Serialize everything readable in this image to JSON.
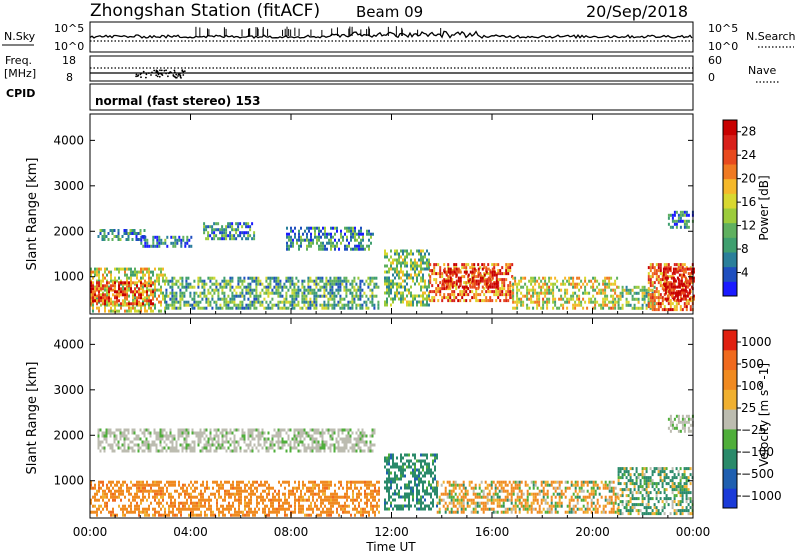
{
  "header": {
    "station": "Zhongshan Station (fitACF)",
    "beam": "Beam 09",
    "date": "20/Sep/2018"
  },
  "summary_panels": {
    "nsky_label": "N.Sky",
    "nsky_ticks": [
      "10^5",
      "10^0"
    ],
    "nsearch_label": "N.Search",
    "nsearch_ticks": [
      "10^5",
      "10^0"
    ],
    "freq_label": "Freq.",
    "freq_unit": "[MHz]",
    "freq_ticks": [
      "18",
      "8"
    ],
    "nave_label": "Nave",
    "nave_ticks": [
      "60",
      "0"
    ],
    "cpid_label": "CPID",
    "cpid_text": "normal (fast stereo) 153"
  },
  "chart_data": [
    {
      "type": "heatmap",
      "name": "power",
      "ylabel": "Slant Range [km]",
      "ylim": [
        180,
        4580
      ],
      "yticks": [
        1000,
        2000,
        3000,
        4000
      ],
      "xlabel": "",
      "xlim_hours": [
        0,
        24
      ],
      "colorbar": {
        "label": "Power [dB]",
        "ticks": [
          "4",
          "8",
          "12",
          "16",
          "20",
          "24",
          "28"
        ],
        "range": [
          0,
          30
        ],
        "colors": [
          "#1a1aff",
          "#1f4fbf",
          "#2a7f9a",
          "#3f9f6f",
          "#5fb05f",
          "#9ccc3c",
          "#d8d830",
          "#f5b82a",
          "#f07a22",
          "#e84a1e",
          "#d8201a",
          "#c80000"
        ]
      },
      "regions": [
        {
          "t": [
            0.0,
            3.0
          ],
          "r": [
            220,
            1200
          ],
          "v": 15,
          "note": "mixed"
        },
        {
          "t": [
            0.0,
            2.5
          ],
          "r": [
            400,
            900
          ],
          "v": 24
        },
        {
          "t": [
            3.0,
            11.5
          ],
          "r": [
            300,
            1000
          ],
          "v": 10
        },
        {
          "t": [
            0.3,
            2.2
          ],
          "r": [
            1850,
            2050
          ],
          "v": 7
        },
        {
          "t": [
            2.0,
            4.0
          ],
          "r": [
            1700,
            1900
          ],
          "v": 6
        },
        {
          "t": [
            4.5,
            6.5
          ],
          "r": [
            1850,
            2200
          ],
          "v": 8
        },
        {
          "t": [
            7.8,
            11.3
          ],
          "r": [
            1600,
            2100
          ],
          "v": 8
        },
        {
          "t": [
            11.7,
            13.5
          ],
          "r": [
            400,
            1600
          ],
          "v": 12
        },
        {
          "t": [
            13.5,
            16.8
          ],
          "r": [
            500,
            1300
          ],
          "v": 22
        },
        {
          "t": [
            14.0,
            16.2
          ],
          "r": [
            800,
            1200
          ],
          "v": 28
        },
        {
          "t": [
            16.8,
            21.0
          ],
          "r": [
            300,
            1000
          ],
          "v": 16
        },
        {
          "t": [
            21.0,
            22.5
          ],
          "r": [
            300,
            800
          ],
          "v": 12
        },
        {
          "t": [
            22.2,
            24.0
          ],
          "r": [
            300,
            1300
          ],
          "v": 22
        },
        {
          "t": [
            22.8,
            24.0
          ],
          "r": [
            500,
            1200
          ],
          "v": 28
        },
        {
          "t": [
            23.0,
            24.0
          ],
          "r": [
            2100,
            2450
          ],
          "v": 6
        }
      ]
    },
    {
      "type": "heatmap",
      "name": "velocity",
      "ylabel": "Slant Range [km]",
      "ylim": [
        180,
        4580
      ],
      "yticks": [
        1000,
        2000,
        3000,
        4000
      ],
      "xlabel": "Time UT",
      "xticks": [
        "00:00",
        "04:00",
        "08:00",
        "12:00",
        "16:00",
        "20:00",
        "00:00"
      ],
      "xlim_hours": [
        0,
        24
      ],
      "colorbar": {
        "label": "Velocity [m s^-1]",
        "ticks": [
          "1000",
          "500",
          "100",
          "25",
          "−25",
          "−100",
          "−500",
          "−1000"
        ],
        "colors": [
          "#1a3ad8",
          "#1f5fb0",
          "#2a8a6a",
          "#4fae3a",
          "#bcbcb0",
          "#f0b030",
          "#f08a20",
          "#f06a1e",
          "#e02010"
        ]
      },
      "regions": [
        {
          "t": [
            0.0,
            11.5
          ],
          "r": [
            220,
            1000
          ],
          "v": -300
        },
        {
          "t": [
            0.3,
            11.3
          ],
          "r": [
            1650,
            2150
          ],
          "v": 0
        },
        {
          "t": [
            11.7,
            13.8
          ],
          "r": [
            400,
            1600
          ],
          "v": 300
        },
        {
          "t": [
            13.8,
            21.0
          ],
          "r": [
            300,
            1000
          ],
          "v": -100
        },
        {
          "t": [
            21.0,
            24.0
          ],
          "r": [
            300,
            1300
          ],
          "v": 150
        },
        {
          "t": [
            23.0,
            24.0
          ],
          "r": [
            2100,
            2450
          ],
          "v": 0
        }
      ]
    }
  ]
}
